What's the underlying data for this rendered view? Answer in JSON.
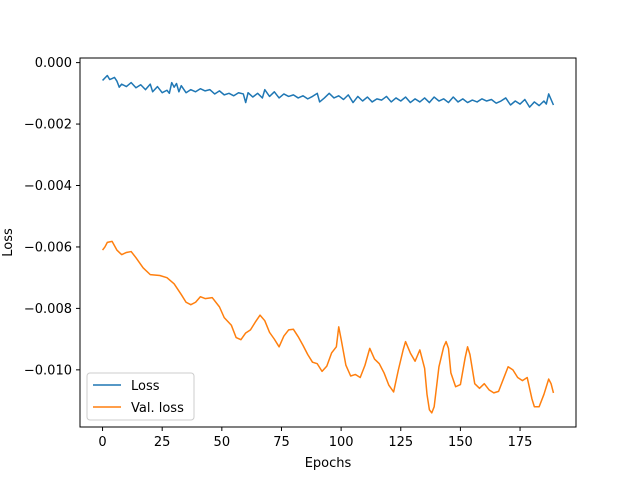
{
  "chart_data": {
    "type": "line",
    "title": "",
    "xlabel": "Epochs",
    "ylabel": "Loss",
    "xlim": [
      -9.45,
      198.45
    ],
    "ylim": [
      -0.01186,
      0.00015
    ],
    "xticks": [
      0,
      25,
      50,
      75,
      100,
      125,
      150,
      175
    ],
    "yticks": [
      0.0,
      -0.002,
      -0.004,
      -0.006,
      -0.008,
      -0.01
    ],
    "xtick_labels": [
      "0",
      "25",
      "50",
      "75",
      "100",
      "125",
      "150",
      "175"
    ],
    "ytick_labels": [
      "0.000",
      "−0.002",
      "−0.004",
      "−0.006",
      "−0.008",
      "−0.010"
    ],
    "grid": false,
    "legend_position": "lower-left",
    "series": [
      {
        "name": "Loss",
        "color": "#1f77b4",
        "points": [
          [
            0,
            -0.00058
          ],
          [
            2,
            -0.00042
          ],
          [
            3,
            -0.00055
          ],
          [
            4,
            -0.00052
          ],
          [
            5,
            -0.00048
          ],
          [
            6,
            -0.0006
          ],
          [
            7,
            -0.0008
          ],
          [
            8,
            -0.0007
          ],
          [
            10,
            -0.00078
          ],
          [
            12,
            -0.00065
          ],
          [
            14,
            -0.00082
          ],
          [
            16,
            -0.00072
          ],
          [
            18,
            -0.00088
          ],
          [
            20,
            -0.0007
          ],
          [
            21,
            -0.00095
          ],
          [
            23,
            -0.00078
          ],
          [
            25,
            -0.00098
          ],
          [
            27,
            -0.0009
          ],
          [
            28,
            -0.001
          ],
          [
            29,
            -0.00065
          ],
          [
            30,
            -0.0008
          ],
          [
            31,
            -0.00068
          ],
          [
            32,
            -0.00095
          ],
          [
            33,
            -0.00075
          ],
          [
            35,
            -0.00098
          ],
          [
            37,
            -0.00088
          ],
          [
            39,
            -0.00095
          ],
          [
            41,
            -0.00085
          ],
          [
            43,
            -0.00092
          ],
          [
            45,
            -0.00088
          ],
          [
            47,
            -0.00102
          ],
          [
            49,
            -0.00092
          ],
          [
            51,
            -0.00105
          ],
          [
            53,
            -0.001
          ],
          [
            55,
            -0.00108
          ],
          [
            57,
            -0.00098
          ],
          [
            59,
            -0.00102
          ],
          [
            60,
            -0.0013
          ],
          [
            61,
            -0.00098
          ],
          [
            63,
            -0.00112
          ],
          [
            65,
            -0.001
          ],
          [
            67,
            -0.00115
          ],
          [
            68,
            -0.00088
          ],
          [
            70,
            -0.0011
          ],
          [
            72,
            -0.00095
          ],
          [
            74,
            -0.00115
          ],
          [
            76,
            -0.00102
          ],
          [
            78,
            -0.0011
          ],
          [
            80,
            -0.00105
          ],
          [
            82,
            -0.00115
          ],
          [
            84,
            -0.00108
          ],
          [
            86,
            -0.00118
          ],
          [
            88,
            -0.0011
          ],
          [
            90,
            -0.001
          ],
          [
            91,
            -0.00128
          ],
          [
            93,
            -0.00115
          ],
          [
            95,
            -0.001
          ],
          [
            97,
            -0.00115
          ],
          [
            99,
            -0.00108
          ],
          [
            101,
            -0.0012
          ],
          [
            103,
            -0.00105
          ],
          [
            105,
            -0.0013
          ],
          [
            107,
            -0.0011
          ],
          [
            109,
            -0.00125
          ],
          [
            111,
            -0.00112
          ],
          [
            113,
            -0.00128
          ],
          [
            115,
            -0.00118
          ],
          [
            117,
            -0.00122
          ],
          [
            119,
            -0.0011
          ],
          [
            121,
            -0.00128
          ],
          [
            123,
            -0.00115
          ],
          [
            125,
            -0.00125
          ],
          [
            127,
            -0.00112
          ],
          [
            129,
            -0.0013
          ],
          [
            131,
            -0.00118
          ],
          [
            133,
            -0.00128
          ],
          [
            135,
            -0.00115
          ],
          [
            137,
            -0.0013
          ],
          [
            139,
            -0.00112
          ],
          [
            141,
            -0.00125
          ],
          [
            143,
            -0.00118
          ],
          [
            145,
            -0.0013
          ],
          [
            147,
            -0.00112
          ],
          [
            149,
            -0.00128
          ],
          [
            151,
            -0.00118
          ],
          [
            153,
            -0.0013
          ],
          [
            155,
            -0.00122
          ],
          [
            157,
            -0.00128
          ],
          [
            159,
            -0.00118
          ],
          [
            161,
            -0.00125
          ],
          [
            163,
            -0.0012
          ],
          [
            165,
            -0.00132
          ],
          [
            167,
            -0.00125
          ],
          [
            169,
            -0.00115
          ],
          [
            171,
            -0.00138
          ],
          [
            173,
            -0.00125
          ],
          [
            175,
            -0.00135
          ],
          [
            177,
            -0.0012
          ],
          [
            179,
            -0.00145
          ],
          [
            181,
            -0.00128
          ],
          [
            183,
            -0.0014
          ],
          [
            185,
            -0.00125
          ],
          [
            186,
            -0.00135
          ],
          [
            187,
            -0.00102
          ],
          [
            189,
            -0.00138
          ]
        ]
      },
      {
        "name": "Val. loss",
        "color": "#ff7f0e",
        "points": [
          [
            0,
            -0.0061
          ],
          [
            1,
            -0.006
          ],
          [
            2,
            -0.00585
          ],
          [
            4,
            -0.00582
          ],
          [
            6,
            -0.0061
          ],
          [
            8,
            -0.00625
          ],
          [
            10,
            -0.00618
          ],
          [
            12,
            -0.00615
          ],
          [
            14,
            -0.00635
          ],
          [
            17,
            -0.00668
          ],
          [
            20,
            -0.0069
          ],
          [
            24,
            -0.00693
          ],
          [
            27,
            -0.007
          ],
          [
            30,
            -0.0072
          ],
          [
            33,
            -0.00755
          ],
          [
            35,
            -0.0078
          ],
          [
            37,
            -0.00788
          ],
          [
            39,
            -0.0078
          ],
          [
            41,
            -0.00762
          ],
          [
            43,
            -0.00768
          ],
          [
            46,
            -0.00765
          ],
          [
            49,
            -0.00795
          ],
          [
            51,
            -0.0083
          ],
          [
            54,
            -0.00855
          ],
          [
            56,
            -0.00895
          ],
          [
            58,
            -0.00902
          ],
          [
            60,
            -0.0088
          ],
          [
            62,
            -0.0087
          ],
          [
            64,
            -0.00845
          ],
          [
            66,
            -0.00822
          ],
          [
            68,
            -0.0084
          ],
          [
            70,
            -0.00878
          ],
          [
            72,
            -0.009
          ],
          [
            74,
            -0.00925
          ],
          [
            76,
            -0.0089
          ],
          [
            78,
            -0.0087
          ],
          [
            80,
            -0.00868
          ],
          [
            82,
            -0.00892
          ],
          [
            84,
            -0.0092
          ],
          [
            86,
            -0.0095
          ],
          [
            88,
            -0.00975
          ],
          [
            90,
            -0.0098
          ],
          [
            92,
            -0.01005
          ],
          [
            94,
            -0.00988
          ],
          [
            96,
            -0.00945
          ],
          [
            98,
            -0.00925
          ],
          [
            99,
            -0.0086
          ],
          [
            100,
            -0.009
          ],
          [
            102,
            -0.00985
          ],
          [
            104,
            -0.0102
          ],
          [
            106,
            -0.01015
          ],
          [
            108,
            -0.01025
          ],
          [
            110,
            -0.00985
          ],
          [
            112,
            -0.0093
          ],
          [
            114,
            -0.00965
          ],
          [
            116,
            -0.0098
          ],
          [
            118,
            -0.0101
          ],
          [
            120,
            -0.0105
          ],
          [
            122,
            -0.01072
          ],
          [
            124,
            -0.01
          ],
          [
            126,
            -0.00935
          ],
          [
            127,
            -0.00908
          ],
          [
            129,
            -0.00945
          ],
          [
            131,
            -0.00972
          ],
          [
            133,
            -0.00935
          ],
          [
            135,
            -0.00995
          ],
          [
            136,
            -0.0108
          ],
          [
            137,
            -0.0113
          ],
          [
            138,
            -0.0114
          ],
          [
            139,
            -0.0112
          ],
          [
            141,
            -0.0099
          ],
          [
            143,
            -0.00925
          ],
          [
            144,
            -0.00908
          ],
          [
            145,
            -0.0093
          ],
          [
            146,
            -0.0101
          ],
          [
            148,
            -0.01055
          ],
          [
            150,
            -0.01048
          ],
          [
            152,
            -0.0096
          ],
          [
            153,
            -0.00925
          ],
          [
            154,
            -0.0095
          ],
          [
            156,
            -0.01045
          ],
          [
            158,
            -0.0106
          ],
          [
            160,
            -0.01045
          ],
          [
            162,
            -0.01065
          ],
          [
            164,
            -0.01075
          ],
          [
            166,
            -0.0107
          ],
          [
            168,
            -0.0103
          ],
          [
            170,
            -0.0099
          ],
          [
            172,
            -0.01
          ],
          [
            174,
            -0.01025
          ],
          [
            176,
            -0.01035
          ],
          [
            178,
            -0.01025
          ],
          [
            180,
            -0.01095
          ],
          [
            181,
            -0.0112
          ],
          [
            183,
            -0.0112
          ],
          [
            185,
            -0.0108
          ],
          [
            187,
            -0.0103
          ],
          [
            188,
            -0.01045
          ],
          [
            189,
            -0.01075
          ]
        ]
      }
    ]
  }
}
